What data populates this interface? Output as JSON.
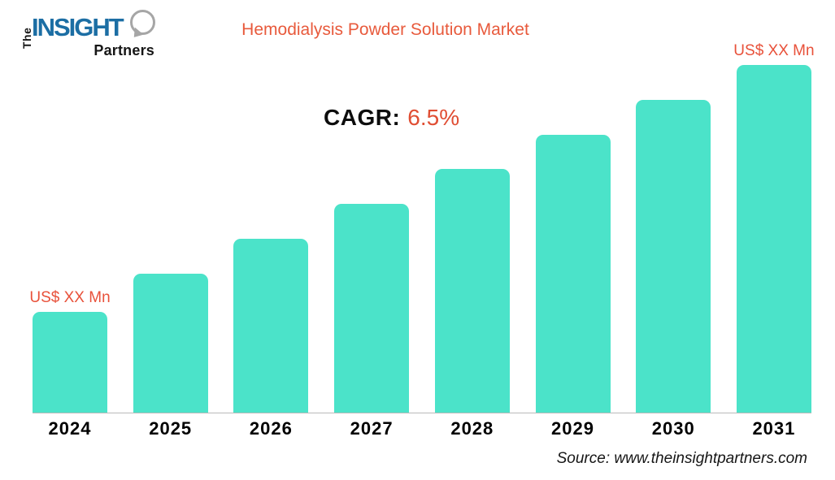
{
  "logo": {
    "the": "The",
    "insight": "INSIGHT",
    "partners": "Partners"
  },
  "header": {
    "title": "Hemodialysis Powder Solution Market"
  },
  "cagr": {
    "label": "CAGR:",
    "value": "6.5%"
  },
  "footer": {
    "source": "Source: www.theinsightpartners.com"
  },
  "colors": {
    "bar": "#4BE3C9",
    "accent_orange": "#E8593C",
    "logo_blue": "#1C6EA4",
    "axis_line": "#B9B9B9",
    "text": "#000000"
  },
  "chart_data": {
    "type": "bar",
    "title": "Hemodialysis Powder Solution Market",
    "categories": [
      "2024",
      "2025",
      "2026",
      "2027",
      "2028",
      "2029",
      "2030",
      "2031"
    ],
    "values_relative_pct": [
      29,
      40,
      50,
      60,
      70,
      80,
      90,
      100
    ],
    "value_labels": [
      "US$ XX Mn",
      "",
      "",
      "",
      "",
      "",
      "",
      "US$ XX Mn"
    ],
    "cagr_annotation": "CAGR: 6.5%",
    "xlabel": "",
    "ylabel": "",
    "y_axis_shown": false,
    "gridlines": false,
    "legend": "none",
    "bar_color": "#4BE3C9"
  }
}
